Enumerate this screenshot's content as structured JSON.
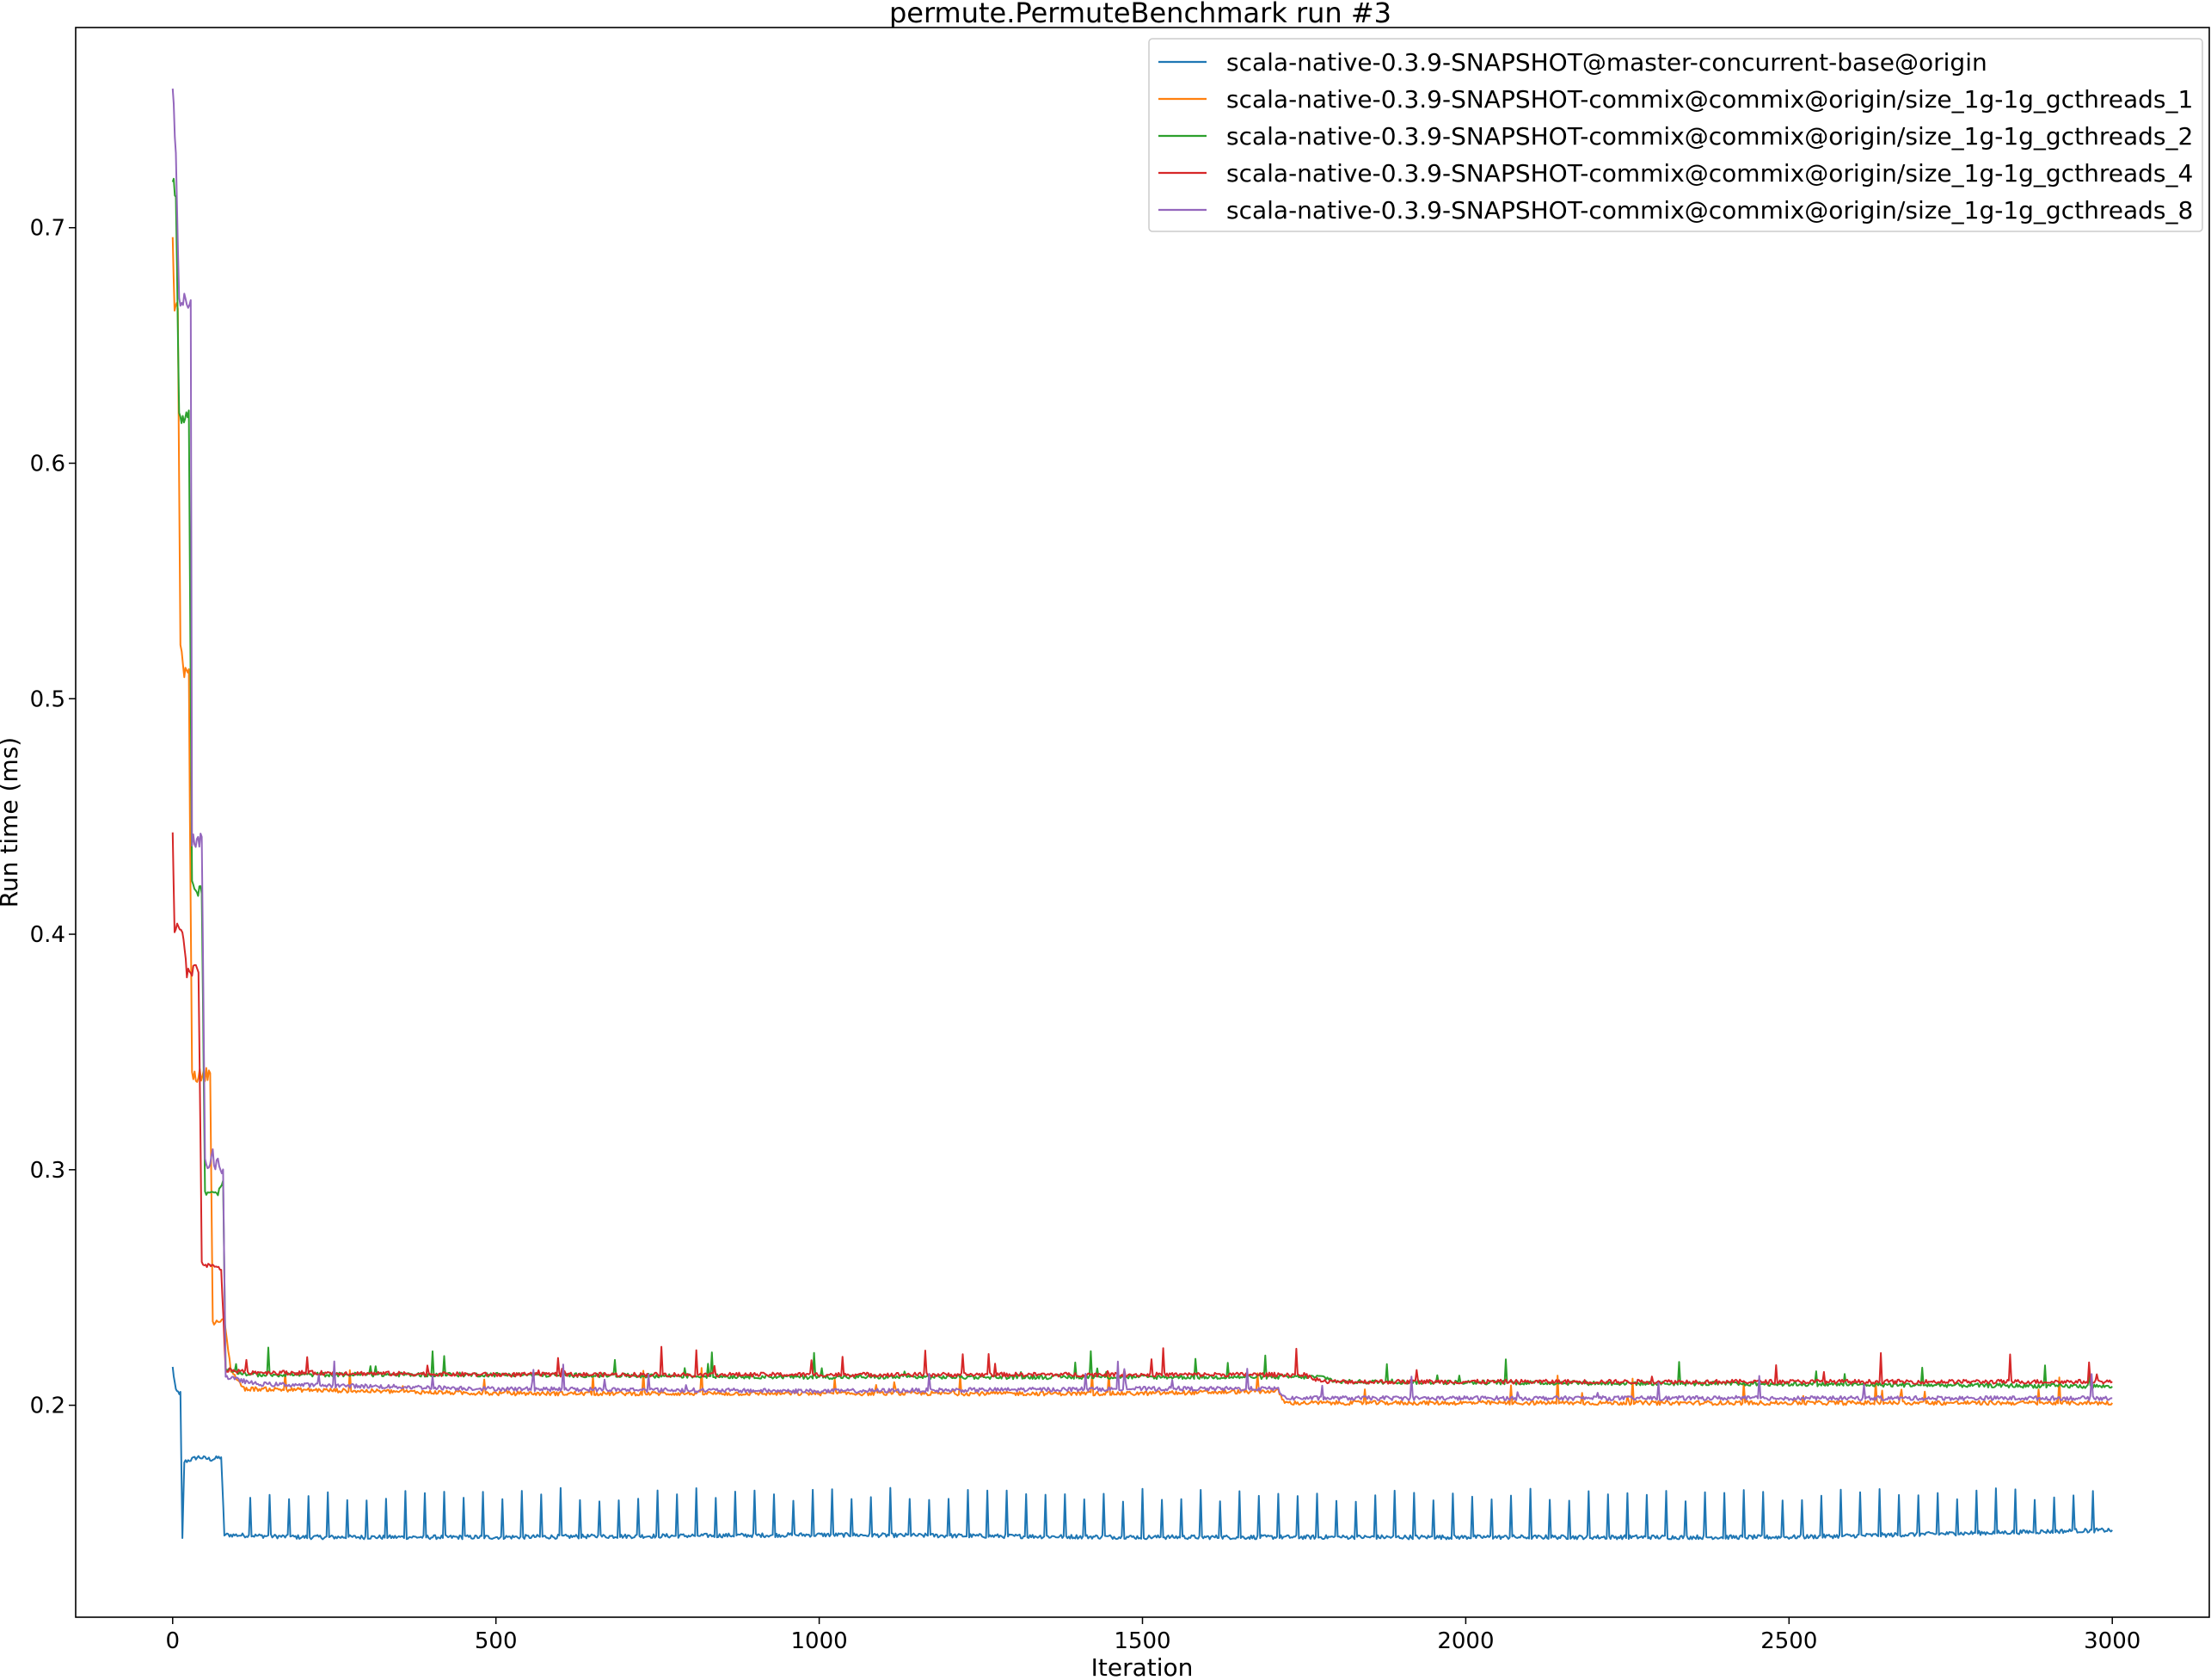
{
  "chart_data": {
    "type": "line",
    "title": "permute.PermuteBenchmark run #3",
    "xlabel": "Iteration",
    "ylabel": "Run time (ms)",
    "xlim": [
      -150,
      3150
    ],
    "ylim": [
      0.11,
      0.785
    ],
    "xticks": [
      0,
      500,
      1000,
      1500,
      2000,
      2500,
      3000
    ],
    "yticks": [
      0.2,
      0.3,
      0.4,
      0.5,
      0.6,
      0.7
    ],
    "ytick_labels": [
      "0.2",
      "0.3",
      "0.4",
      "0.5",
      "0.6",
      "0.7"
    ],
    "grid": false,
    "legend_position": "upper right",
    "series": [
      {
        "name": "scala-native-0.3.9-SNAPSHOT@master-concurrent-base@origin",
        "color": "#1f77b4",
        "points": [
          [
            0,
            0.216
          ],
          [
            5,
            0.206
          ],
          [
            12,
            0.205
          ],
          [
            15,
            0.143
          ],
          [
            18,
            0.176
          ],
          [
            40,
            0.178
          ],
          [
            60,
            0.177
          ],
          [
            75,
            0.178
          ],
          [
            80,
            0.145
          ],
          [
            200,
            0.144
          ],
          [
            500,
            0.144
          ],
          [
            1000,
            0.145
          ],
          [
            1500,
            0.144
          ],
          [
            2000,
            0.144
          ],
          [
            2500,
            0.144
          ],
          [
            3000,
            0.147
          ]
        ],
        "spike_every": 15,
        "spike_value": 0.162
      },
      {
        "name": "scala-native-0.3.9-SNAPSHOT-commix@commix@origin/size_1g-1g_gcthreads_1",
        "color": "#ff7f0e",
        "points": [
          [
            0,
            0.693
          ],
          [
            3,
            0.665
          ],
          [
            8,
            0.668
          ],
          [
            12,
            0.52
          ],
          [
            18,
            0.512
          ],
          [
            25,
            0.51
          ],
          [
            30,
            0.34
          ],
          [
            50,
            0.34
          ],
          [
            58,
            0.342
          ],
          [
            62,
            0.235
          ],
          [
            80,
            0.236
          ],
          [
            90,
            0.215
          ],
          [
            110,
            0.207
          ],
          [
            500,
            0.205
          ],
          [
            1000,
            0.205
          ],
          [
            1500,
            0.205
          ],
          [
            1710,
            0.206
          ],
          [
            1720,
            0.201
          ],
          [
            2000,
            0.201
          ],
          [
            2500,
            0.201
          ],
          [
            3000,
            0.201
          ]
        ]
      },
      {
        "name": "scala-native-0.3.9-SNAPSHOT-commix@commix@origin/size_1g-1g_gcthreads_2",
        "color": "#2ca02c",
        "points": [
          [
            0,
            0.72
          ],
          [
            5,
            0.715
          ],
          [
            10,
            0.62
          ],
          [
            25,
            0.62
          ],
          [
            30,
            0.42
          ],
          [
            45,
            0.418
          ],
          [
            50,
            0.29
          ],
          [
            70,
            0.29
          ],
          [
            78,
            0.295
          ],
          [
            82,
            0.215
          ],
          [
            120,
            0.213
          ],
          [
            500,
            0.213
          ],
          [
            1000,
            0.212
          ],
          [
            1500,
            0.212
          ],
          [
            1780,
            0.212
          ],
          [
            1800,
            0.21
          ],
          [
            2500,
            0.209
          ],
          [
            3000,
            0.208
          ]
        ]
      },
      {
        "name": "scala-native-0.3.9-SNAPSHOT-commix@commix@origin/size_1g-1g_gcthreads_4",
        "color": "#d62728",
        "points": [
          [
            0,
            0.444
          ],
          [
            3,
            0.402
          ],
          [
            15,
            0.401
          ],
          [
            22,
            0.383
          ],
          [
            40,
            0.385
          ],
          [
            45,
            0.26
          ],
          [
            75,
            0.258
          ],
          [
            82,
            0.215
          ],
          [
            120,
            0.214
          ],
          [
            500,
            0.213
          ],
          [
            1000,
            0.213
          ],
          [
            1500,
            0.213
          ],
          [
            1750,
            0.213
          ],
          [
            1780,
            0.21
          ],
          [
            2500,
            0.21
          ],
          [
            3000,
            0.21
          ]
        ]
      },
      {
        "name": "scala-native-0.3.9-SNAPSHOT-commix@commix@origin/size_1g-1g_gcthreads_8",
        "color": "#9467bd",
        "points": [
          [
            0,
            0.76
          ],
          [
            5,
            0.73
          ],
          [
            10,
            0.67
          ],
          [
            28,
            0.668
          ],
          [
            30,
            0.44
          ],
          [
            45,
            0.44
          ],
          [
            50,
            0.303
          ],
          [
            70,
            0.303
          ],
          [
            78,
            0.3
          ],
          [
            82,
            0.212
          ],
          [
            130,
            0.209
          ],
          [
            500,
            0.207
          ],
          [
            1000,
            0.206
          ],
          [
            1500,
            0.207
          ],
          [
            1710,
            0.207
          ],
          [
            1720,
            0.203
          ],
          [
            2000,
            0.203
          ],
          [
            2500,
            0.203
          ],
          [
            3000,
            0.203
          ]
        ]
      }
    ]
  }
}
